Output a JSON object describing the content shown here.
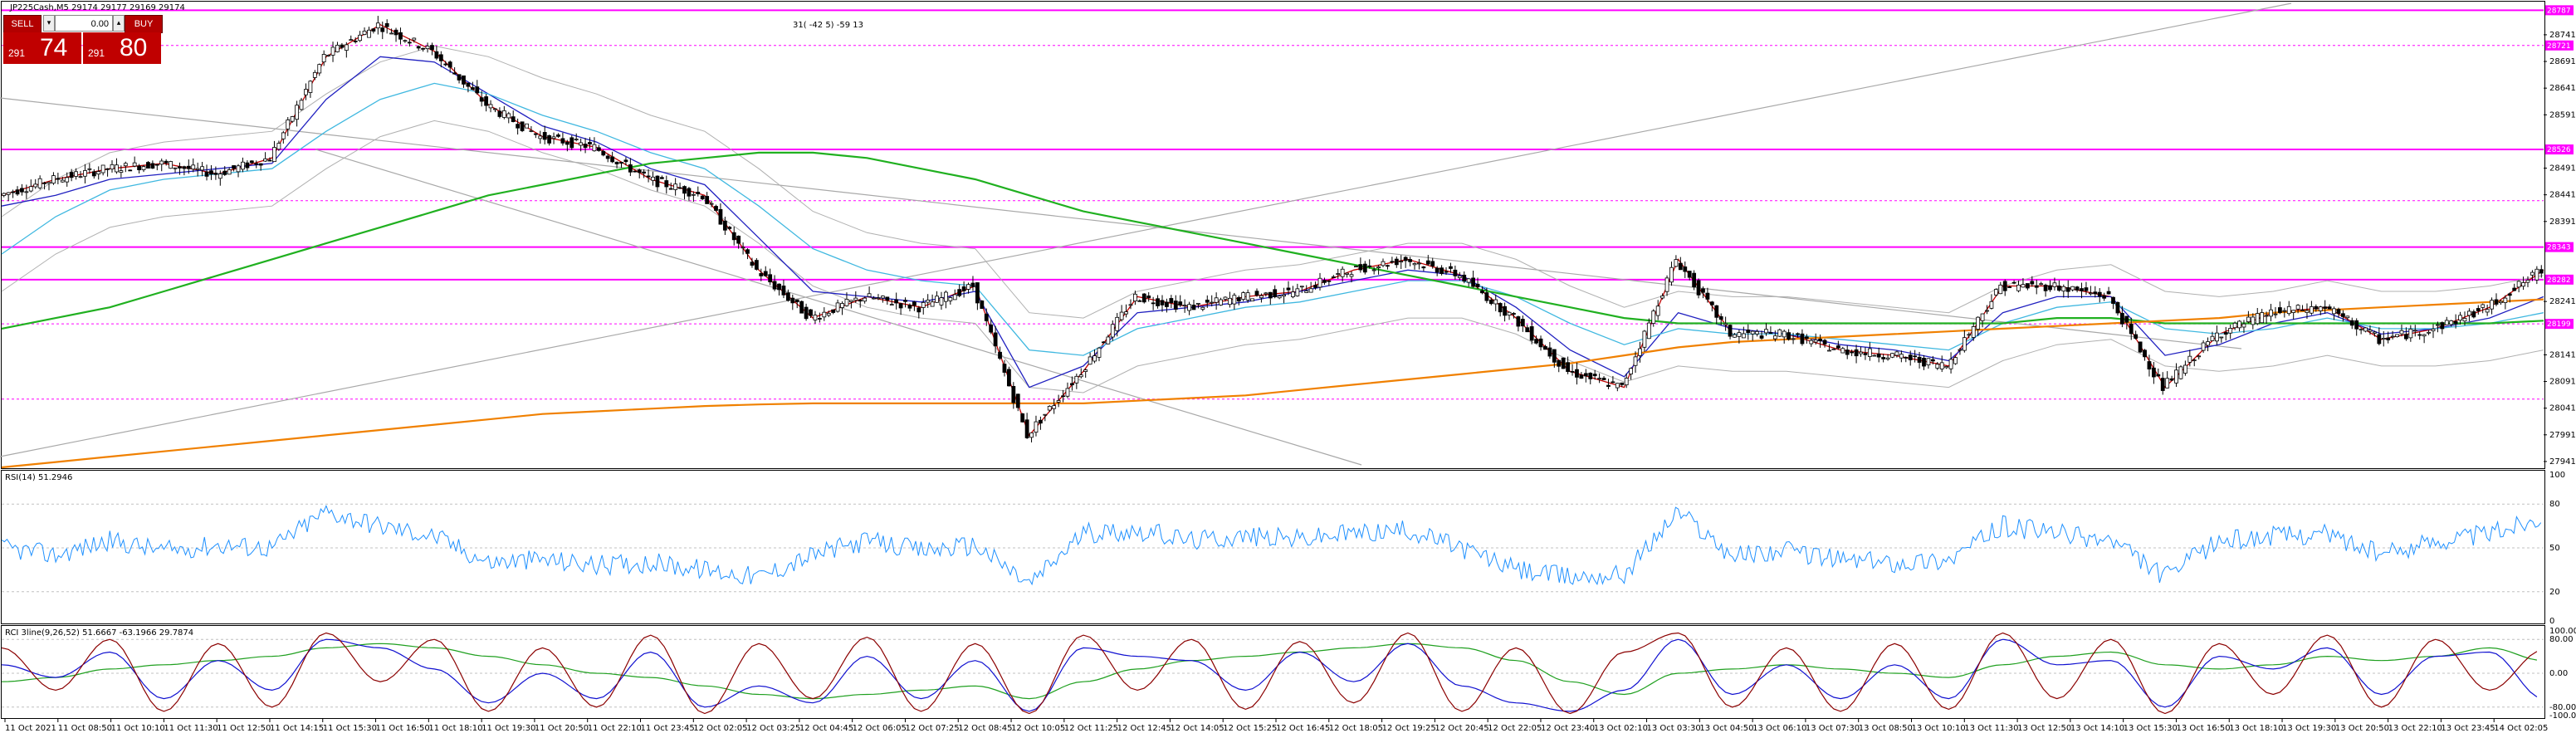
{
  "header": {
    "symbol_line": "JP225Cash,M5  29174 29177 29169 29174",
    "indicator_text": "31( -42 5) -59 13"
  },
  "trade_panel": {
    "sell_label": "SELL",
    "buy_label": "BUY",
    "volume": "0.00",
    "sell_price_small": "291",
    "sell_price_big": "74",
    "buy_price_small": "291",
    "buy_price_big": "80"
  },
  "subwindows": {
    "rsi_label": "RSI(14) 51.2946",
    "rci_label": "RCI 3line(9,26,52) 51.6667 -63.1966 29.7874"
  },
  "colors": {
    "price_bars": "#000000",
    "ma_red": "#c00000",
    "ma_blue": "#2020c0",
    "ma_cyan": "#40b8e0",
    "ma_green": "#20b020",
    "ma_orange": "#f08000",
    "bands": "#b0b0b0",
    "levels": "#ff00ff",
    "rsi": "#1e90ff",
    "rci_short": "#8b0000",
    "rci_mid": "#1010d0",
    "rci_long": "#20a020"
  },
  "chart_data": {
    "type": "line",
    "title": "JP225Cash,M5",
    "y_ticks": [
      "28741",
      "28691",
      "28641",
      "28591",
      "28491",
      "28441",
      "28391",
      "28241",
      "28141",
      "28091",
      "28041",
      "27991",
      "27941"
    ],
    "ylim": [
      27930,
      28800
    ],
    "level_tags": [
      "28787",
      "28721",
      "28526",
      "28343",
      "28282",
      "28199"
    ],
    "levels": [
      {
        "value": 28787,
        "style": "solid"
      },
      {
        "value": 28721,
        "style": "dashed"
      },
      {
        "value": 28526,
        "style": "solid"
      },
      {
        "value": 28430,
        "style": "dashed"
      },
      {
        "value": 28343,
        "style": "solid"
      },
      {
        "value": 28282,
        "style": "solid"
      },
      {
        "value": 28199,
        "style": "dashed"
      },
      {
        "value": 28058,
        "style": "dashed"
      }
    ],
    "x_ticks": [
      "11 Oct 2021",
      "11 Oct 08:50",
      "11 Oct 10:10",
      "11 Oct 11:30",
      "11 Oct 12:50",
      "11 Oct 14:15",
      "11 Oct 15:30",
      "11 Oct 16:50",
      "11 Oct 18:10",
      "11 Oct 19:30",
      "11 Oct 20:50",
      "11 Oct 22:10",
      "11 Oct 23:45",
      "12 Oct 02:05",
      "12 Oct 03:25",
      "12 Oct 04:45",
      "12 Oct 06:05",
      "12 Oct 07:25",
      "12 Oct 08:45",
      "12 Oct 10:05",
      "12 Oct 11:25",
      "12 Oct 12:45",
      "12 Oct 14:05",
      "12 Oct 15:25",
      "12 Oct 16:45",
      "12 Oct 18:05",
      "12 Oct 19:25",
      "12 Oct 20:45",
      "12 Oct 22:05",
      "12 Oct 23:40",
      "13 Oct 02:10",
      "13 Oct 03:30",
      "13 Oct 04:50",
      "13 Oct 06:10",
      "13 Oct 07:30",
      "13 Oct 08:50",
      "13 Oct 10:10",
      "13 Oct 11:30",
      "13 Oct 12:50",
      "13 Oct 14:10",
      "13 Oct 15:30",
      "13 Oct 16:50",
      "13 Oct 18:10",
      "13 Oct 19:30",
      "13 Oct 20:50",
      "13 Oct 22:10",
      "13 Oct 23:45",
      "14 Oct 02:05"
    ],
    "series": [
      {
        "values": [
          28440,
          28470,
          28490,
          28500,
          28480,
          28510,
          28700,
          28760,
          28710,
          28610,
          28550,
          28530,
          28470,
          28440,
          28300,
          28210,
          28250,
          28230,
          28270,
          27990,
          28110,
          28250,
          28230,
          28250,
          28260,
          28300,
          28320,
          28290,
          28210,
          28110,
          28080,
          28320,
          28180,
          28180,
          28150,
          28140,
          28120,
          28270,
          28270,
          28250,
          28080,
          28180,
          28220,
          28230,
          28170,
          28190,
          28230,
          28300
        ]
      },
      {
        "values": [
          28420,
          28440,
          28470,
          28480,
          28490,
          28500,
          28620,
          28700,
          28690,
          28630,
          28570,
          28540,
          28490,
          28460,
          28360,
          28260,
          28250,
          28240,
          28260,
          28080,
          28120,
          28220,
          28230,
          28240,
          28260,
          28280,
          28300,
          28290,
          28230,
          28150,
          28100,
          28220,
          28190,
          28180,
          28160,
          28150,
          28130,
          28220,
          28250,
          28250,
          28140,
          28160,
          28200,
          28220,
          28180,
          28190,
          28210,
          28250
        ]
      },
      {
        "values": [
          28330,
          28400,
          28450,
          28470,
          28480,
          28490,
          28560,
          28620,
          28650,
          28630,
          28590,
          28560,
          28520,
          28490,
          28420,
          28340,
          28300,
          28280,
          28270,
          28150,
          28140,
          28190,
          28210,
          28230,
          28240,
          28260,
          28280,
          28280,
          28250,
          28200,
          28160,
          28190,
          28180,
          28180,
          28170,
          28160,
          28150,
          28200,
          28230,
          28240,
          28190,
          28180,
          28190,
          28210,
          28190,
          28190,
          28200,
          28220
        ]
      },
      {
        "values": [
          28190,
          28210,
          28230,
          28260,
          28290,
          28320,
          28350,
          28380,
          28410,
          28440,
          28460,
          28480,
          28500,
          28510,
          28520,
          28520,
          28510,
          28490,
          28470,
          28440,
          28410,
          28390,
          28370,
          28350,
          28330,
          28310,
          28290,
          28270,
          28250,
          28230,
          28210,
          28200,
          28200,
          28200,
          28200,
          28200,
          28200,
          28200,
          28210,
          28210,
          28200,
          28200,
          28200,
          28200,
          28200,
          28200,
          28200,
          28205
        ]
      },
      {
        "values": [
          27930,
          27940,
          27950,
          27960,
          27970,
          27980,
          27990,
          28000,
          28010,
          28020,
          28030,
          28035,
          28040,
          28045,
          28048,
          28050,
          28050,
          28050,
          28050,
          28050,
          28050,
          28055,
          28060,
          28065,
          28075,
          28085,
          28095,
          28105,
          28115,
          28125,
          28140,
          28155,
          28165,
          28170,
          28175,
          28180,
          28185,
          28190,
          28195,
          28200,
          28205,
          28210,
          28220,
          28225,
          28230,
          28235,
          28240,
          28245
        ]
      }
    ],
    "rsi": {
      "levels": [
        100,
        80,
        50,
        20,
        0
      ],
      "values": [
        50,
        45,
        55,
        48,
        52,
        50,
        75,
        65,
        58,
        40,
        42,
        38,
        40,
        35,
        30,
        45,
        55,
        48,
        52,
        25,
        60,
        62,
        55,
        58,
        56,
        60,
        62,
        50,
        35,
        30,
        32,
        75,
        45,
        48,
        42,
        40,
        42,
        65,
        60,
        55,
        30,
        55,
        58,
        60,
        45,
        55,
        60,
        72
      ]
    },
    "rci": {
      "levels": [
        100,
        80,
        0,
        -80,
        -100
      ],
      "short": [
        60,
        -40,
        80,
        -90,
        70,
        -80,
        95,
        -20,
        80,
        -90,
        60,
        -80,
        90,
        -95,
        70,
        -60,
        85,
        -90,
        70,
        -95,
        90,
        -40,
        80,
        -85,
        75,
        -70,
        95,
        -90,
        60,
        -95,
        50,
        95,
        -80,
        60,
        -90,
        70,
        -85,
        95,
        -60,
        80,
        -95,
        70,
        -50,
        90,
        -80,
        80,
        -40,
        55
      ],
      "mid": [
        20,
        -10,
        50,
        -60,
        30,
        -40,
        80,
        60,
        10,
        -70,
        0,
        -60,
        50,
        -80,
        -30,
        -70,
        40,
        -60,
        30,
        -90,
        60,
        40,
        30,
        -40,
        50,
        -20,
        70,
        -30,
        -70,
        -90,
        -40,
        80,
        -50,
        20,
        -60,
        20,
        -60,
        80,
        20,
        30,
        -80,
        40,
        10,
        60,
        -50,
        40,
        50,
        -60
      ],
      "long": [
        -20,
        -10,
        10,
        20,
        30,
        40,
        60,
        70,
        60,
        40,
        20,
        0,
        -10,
        -30,
        -50,
        -60,
        -50,
        -40,
        -30,
        -60,
        -20,
        10,
        30,
        40,
        50,
        60,
        70,
        60,
        30,
        -20,
        -50,
        0,
        10,
        20,
        10,
        0,
        -10,
        20,
        40,
        50,
        20,
        10,
        20,
        40,
        30,
        40,
        60,
        30
      ]
    }
  }
}
